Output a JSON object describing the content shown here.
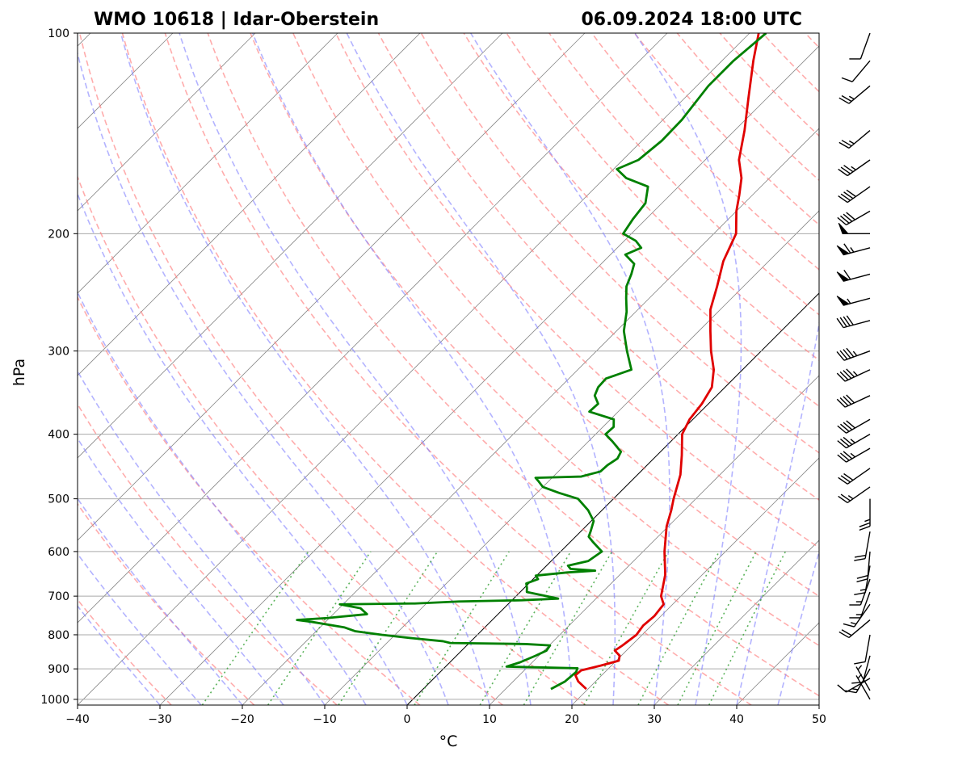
{
  "header": {
    "station": "WMO 10618 | Idar-Oberstein",
    "datetime": "06.09.2024 18:00 UTC"
  },
  "chart_data": {
    "type": "line",
    "subtype": "skew-t log-p",
    "xlabel": "°C",
    "ylabel": "hPa",
    "xlim": [
      -40,
      50
    ],
    "ylim": [
      1020,
      100
    ],
    "yscale": "log",
    "x_ticks": [
      -40,
      -30,
      -20,
      -10,
      0,
      10,
      20,
      30,
      40,
      50
    ],
    "y_ticks": [
      100,
      200,
      300,
      400,
      500,
      600,
      700,
      800,
      900,
      1000
    ],
    "grid": true,
    "colors": {
      "temperature": "#e00000",
      "dewpoint": "#008000",
      "dry_adiabats": "#ff8080",
      "moist_adiabats": "#8080ff",
      "mixing_ratio": "#33a033",
      "isotherms": "#888888"
    },
    "series": [
      {
        "key": "temperature",
        "points": [
          [
            965,
            19.8
          ],
          [
            940,
            17.9
          ],
          [
            920,
            16.8
          ],
          [
            905,
            16.9
          ],
          [
            890,
            18.7
          ],
          [
            875,
            20.3
          ],
          [
            860,
            19.8
          ],
          [
            845,
            18.6
          ],
          [
            830,
            18.9
          ],
          [
            800,
            19.3
          ],
          [
            775,
            19.0
          ],
          [
            750,
            19.2
          ],
          [
            720,
            18.9
          ],
          [
            700,
            17.6
          ],
          [
            650,
            15.5
          ],
          [
            600,
            12.6
          ],
          [
            550,
            9.8
          ],
          [
            520,
            8.4
          ],
          [
            500,
            7.3
          ],
          [
            460,
            5.2
          ],
          [
            430,
            3.0
          ],
          [
            400,
            0.5
          ],
          [
            380,
            -0.4
          ],
          [
            360,
            -0.8
          ],
          [
            340,
            -1.6
          ],
          [
            320,
            -3.5
          ],
          [
            300,
            -6.1
          ],
          [
            280,
            -8.6
          ],
          [
            260,
            -11.2
          ],
          [
            240,
            -13.2
          ],
          [
            220,
            -15.5
          ],
          [
            200,
            -17.3
          ],
          [
            185,
            -20.0
          ],
          [
            175,
            -21.6
          ],
          [
            165,
            -23.4
          ],
          [
            155,
            -25.9
          ],
          [
            140,
            -28.8
          ],
          [
            125,
            -32.3
          ],
          [
            110,
            -36.2
          ],
          [
            100,
            -38.9
          ]
        ]
      },
      {
        "key": "dewpoint",
        "points": [
          [
            965,
            15.5
          ],
          [
            940,
            16.3
          ],
          [
            910,
            16.5
          ],
          [
            898,
            16.2
          ],
          [
            893,
            7.4
          ],
          [
            880,
            8.5
          ],
          [
            860,
            9.6
          ],
          [
            845,
            10.3
          ],
          [
            830,
            10.1
          ],
          [
            826,
            7.0
          ],
          [
            823,
            -2.3
          ],
          [
            818,
            -3.4
          ],
          [
            810,
            -7.3
          ],
          [
            800,
            -11.6
          ],
          [
            790,
            -15.3
          ],
          [
            780,
            -17.0
          ],
          [
            765,
            -21.7
          ],
          [
            760,
            -23.7
          ],
          [
            755,
            -20.3
          ],
          [
            745,
            -15.9
          ],
          [
            730,
            -17.4
          ],
          [
            720,
            -20.4
          ],
          [
            718,
            -11.4
          ],
          [
            713,
            -6.3
          ],
          [
            710,
            1.2
          ],
          [
            706,
            5.4
          ],
          [
            700,
            3.7
          ],
          [
            690,
            0.8
          ],
          [
            680,
            0.3
          ],
          [
            670,
            -0.3
          ],
          [
            660,
            0.6
          ],
          [
            652,
            -0.1
          ],
          [
            645,
            3.3
          ],
          [
            641,
            6.5
          ],
          [
            637,
            3.3
          ],
          [
            630,
            2.6
          ],
          [
            620,
            4.5
          ],
          [
            600,
            5.0
          ],
          [
            580,
            2.7
          ],
          [
            570,
            1.6
          ],
          [
            560,
            1.2
          ],
          [
            540,
            0.3
          ],
          [
            520,
            -1.7
          ],
          [
            500,
            -4.3
          ],
          [
            490,
            -7.3
          ],
          [
            480,
            -10.0
          ],
          [
            470,
            -11.3
          ],
          [
            465,
            -12.0
          ],
          [
            463,
            -6.6
          ],
          [
            455,
            -4.9
          ],
          [
            445,
            -4.8
          ],
          [
            435,
            -4.4
          ],
          [
            425,
            -4.8
          ],
          [
            410,
            -7.1
          ],
          [
            400,
            -8.8
          ],
          [
            390,
            -8.7
          ],
          [
            380,
            -9.6
          ],
          [
            370,
            -13.5
          ],
          [
            360,
            -13.4
          ],
          [
            350,
            -14.8
          ],
          [
            340,
            -15.4
          ],
          [
            330,
            -15.5
          ],
          [
            320,
            -13.5
          ],
          [
            300,
            -16.3
          ],
          [
            280,
            -19.1
          ],
          [
            262,
            -21.1
          ],
          [
            250,
            -22.8
          ],
          [
            240,
            -24.2
          ],
          [
            230,
            -25.1
          ],
          [
            222,
            -26.0
          ],
          [
            215,
            -28.2
          ],
          [
            210,
            -27.1
          ],
          [
            205,
            -28.6
          ],
          [
            200,
            -31.0
          ],
          [
            190,
            -31.6
          ],
          [
            180,
            -32.0
          ],
          [
            170,
            -33.7
          ],
          [
            165,
            -37.4
          ],
          [
            160,
            -39.6
          ],
          [
            155,
            -38.1
          ],
          [
            145,
            -37.6
          ],
          [
            135,
            -37.7
          ],
          [
            120,
            -38.6
          ],
          [
            110,
            -38.6
          ],
          [
            100,
            -38.0
          ]
        ]
      }
    ],
    "wind_barbs": {
      "description": "wind direction (deg) and speed (kt) by pressure level",
      "levels": [
        [
          1000,
          330,
          5
        ],
        [
          970,
          330,
          5
        ],
        [
          930,
          240,
          10
        ],
        [
          900,
          210,
          15
        ],
        [
          860,
          195,
          10
        ],
        [
          800,
          190,
          10
        ],
        [
          760,
          230,
          20
        ],
        [
          720,
          215,
          15
        ],
        [
          690,
          200,
          15
        ],
        [
          660,
          200,
          15
        ],
        [
          630,
          190,
          15
        ],
        [
          600,
          185,
          20
        ],
        [
          560,
          190,
          20
        ],
        [
          500,
          180,
          25
        ],
        [
          480,
          235,
          25
        ],
        [
          450,
          235,
          30
        ],
        [
          420,
          240,
          35
        ],
        [
          400,
          240,
          35
        ],
        [
          380,
          240,
          40
        ],
        [
          350,
          245,
          40
        ],
        [
          320,
          245,
          45
        ],
        [
          300,
          250,
          45
        ],
        [
          270,
          255,
          40
        ],
        [
          250,
          255,
          55
        ],
        [
          230,
          255,
          60
        ],
        [
          210,
          255,
          65
        ],
        [
          200,
          270,
          50
        ],
        [
          185,
          240,
          40
        ],
        [
          170,
          235,
          40
        ],
        [
          155,
          235,
          35
        ],
        [
          140,
          230,
          25
        ],
        [
          120,
          230,
          25
        ],
        [
          110,
          220,
          10
        ],
        [
          100,
          200,
          10
        ]
      ]
    }
  }
}
